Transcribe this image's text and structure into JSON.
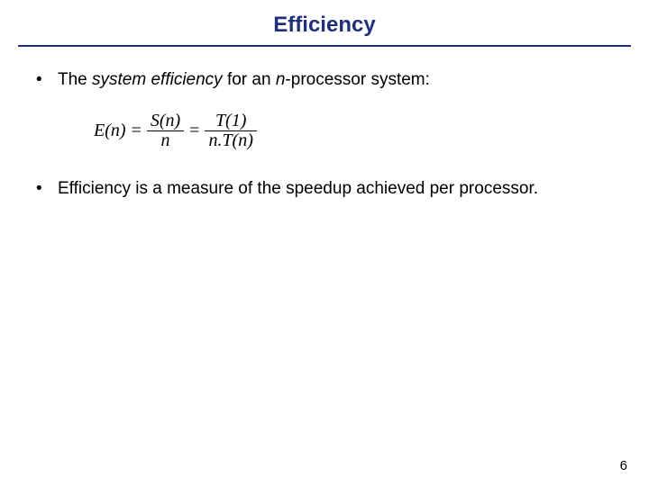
{
  "title": {
    "text": "Efficiency",
    "color": "#1f2f7a",
    "fontsize": 24
  },
  "hr_color": "#1f2f7a",
  "bullets": [
    {
      "parts": [
        {
          "t": "The ",
          "style": ""
        },
        {
          "t": "system efficiency",
          "style": "italic"
        },
        {
          "t": " for an ",
          "style": ""
        },
        {
          "t": "n",
          "style": "italic"
        },
        {
          "t": "-processor system:",
          "style": ""
        }
      ]
    },
    {
      "parts": [
        {
          "t": "Efficiency is a measure of the speedup achieved per processor.",
          "style": ""
        }
      ]
    }
  ],
  "equation": {
    "lhs": "E(n)",
    "eq": "=",
    "frac1": {
      "num": "S(n)",
      "den": "n"
    },
    "eq2": "=",
    "frac2": {
      "num": "T(1)",
      "den": "n.T(n)"
    }
  },
  "pagenum": "6",
  "colors": {
    "text": "#000000",
    "background": "#ffffff"
  }
}
